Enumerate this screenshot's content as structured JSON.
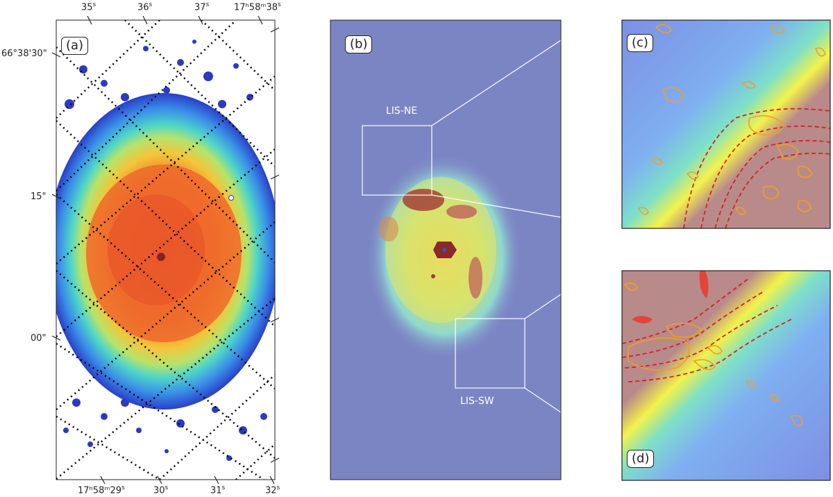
{
  "panels": {
    "a": {
      "label": "(a)"
    },
    "b": {
      "label": "(b)",
      "regions": [
        {
          "name": "LIS-NE",
          "label": "LIS-NE"
        },
        {
          "name": "LIS-SW",
          "label": "LIS-SW"
        }
      ]
    },
    "c": {
      "label": "(c)"
    },
    "d": {
      "label": "(d)"
    }
  },
  "axes": {
    "top_ticks": [
      {
        "id": "t35",
        "main": "35",
        "sup": "s"
      },
      {
        "id": "t36",
        "main": "36",
        "sup": "s"
      },
      {
        "id": "t37",
        "main": "37",
        "sup": "s"
      },
      {
        "id": "t38",
        "main": "17ʰ58ᵐ38",
        "sup": "s"
      }
    ],
    "left_ticks": [
      {
        "id": "l30",
        "text": "66°38'30\""
      },
      {
        "id": "l15",
        "text": "15\""
      },
      {
        "id": "l00",
        "text": "00\""
      }
    ],
    "bottom_ticks": [
      {
        "id": "b29",
        "main": "17ʰ58ᵐ29",
        "sup": "s"
      },
      {
        "id": "b30",
        "main": "30",
        "sup": "s"
      },
      {
        "id": "b31",
        "main": "31",
        "sup": "s"
      },
      {
        "id": "b32",
        "main": "32",
        "sup": "s"
      }
    ]
  },
  "colors": {
    "contour_dashed": "#d42020",
    "contour_solid": "#f0a020",
    "box": "#ffffff"
  }
}
